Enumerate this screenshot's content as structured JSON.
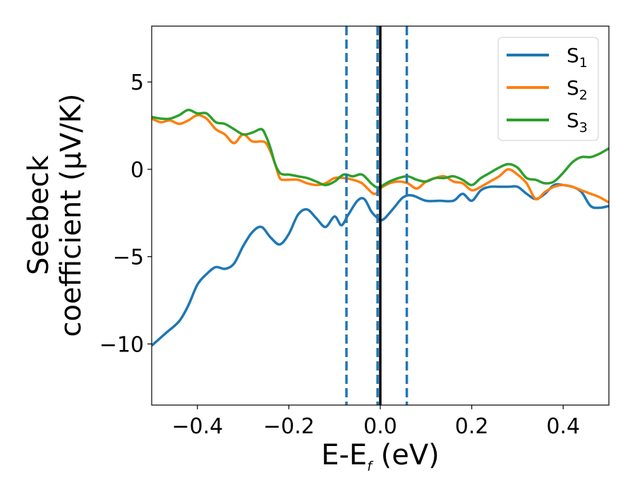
{
  "chart_data": {
    "type": "line",
    "title": "",
    "xlabel": {
      "main": "E-E",
      "sub": "f",
      "unit": " (eV)"
    },
    "ylabel": {
      "line1": "Seebeck",
      "line2": "coefficient  (μV/K)"
    },
    "xlim": [
      -0.5,
      0.5
    ],
    "ylim": [
      -13.5,
      8.2
    ],
    "xticks": [
      {
        "value": -0.4,
        "label": "−0.4"
      },
      {
        "value": -0.2,
        "label": "−0.2"
      },
      {
        "value": 0.0,
        "label": "0.0"
      },
      {
        "value": 0.2,
        "label": "0.2"
      },
      {
        "value": 0.4,
        "label": "0.4"
      }
    ],
    "yticks": [
      {
        "value": 5,
        "label": "5"
      },
      {
        "value": 0,
        "label": "0"
      },
      {
        "value": -5,
        "label": "−5"
      },
      {
        "value": -10,
        "label": "−10"
      }
    ],
    "grid": false,
    "legend_position": "top-right",
    "vlines": [
      {
        "x": -0.074,
        "style": "dashed",
        "color": "#1f77b4"
      },
      {
        "x": -0.006,
        "style": "dashed",
        "color": "#1f77b4"
      },
      {
        "x": 0.058,
        "style": "dashed",
        "color": "#1f77b4"
      },
      {
        "x": 0.0,
        "style": "solid",
        "color": "#000000"
      }
    ],
    "series": [
      {
        "name": "S",
        "sub": "1",
        "color": "#1f77b4",
        "x": [
          -0.5,
          -0.47,
          -0.44,
          -0.42,
          -0.4,
          -0.38,
          -0.36,
          -0.34,
          -0.32,
          -0.3,
          -0.28,
          -0.26,
          -0.24,
          -0.22,
          -0.2,
          -0.18,
          -0.16,
          -0.14,
          -0.12,
          -0.1,
          -0.085,
          -0.07,
          -0.05,
          -0.035,
          -0.02,
          -0.01,
          0.0,
          0.01,
          0.03,
          0.05,
          0.07,
          0.1,
          0.13,
          0.16,
          0.18,
          0.2,
          0.22,
          0.24,
          0.26,
          0.28,
          0.3,
          0.32,
          0.34,
          0.36,
          0.38,
          0.4,
          0.42,
          0.44,
          0.46,
          0.48,
          0.5
        ],
        "y": [
          -10.1,
          -9.4,
          -8.7,
          -7.8,
          -6.6,
          -6.0,
          -5.6,
          -5.7,
          -5.4,
          -4.4,
          -3.6,
          -3.3,
          -3.9,
          -4.3,
          -3.7,
          -2.6,
          -2.3,
          -2.8,
          -3.3,
          -2.7,
          -3.2,
          -2.6,
          -1.8,
          -1.7,
          -2.4,
          -2.7,
          -2.9,
          -2.8,
          -2.2,
          -1.6,
          -1.5,
          -1.8,
          -1.8,
          -1.8,
          -1.4,
          -1.8,
          -1.2,
          -1.0,
          -1.0,
          -1.0,
          -1.0,
          -1.4,
          -1.7,
          -1.4,
          -0.9,
          -0.9,
          -1.0,
          -1.3,
          -2.1,
          -2.2,
          -2.1
        ]
      },
      {
        "name": "S",
        "sub": "2",
        "color": "#ff7f0e",
        "x": [
          -0.5,
          -0.48,
          -0.46,
          -0.44,
          -0.42,
          -0.4,
          -0.38,
          -0.36,
          -0.34,
          -0.32,
          -0.3,
          -0.28,
          -0.26,
          -0.25,
          -0.24,
          -0.23,
          -0.22,
          -0.21,
          -0.2,
          -0.18,
          -0.16,
          -0.14,
          -0.12,
          -0.1,
          -0.08,
          -0.06,
          -0.04,
          -0.02,
          -0.01,
          0.0,
          0.02,
          0.04,
          0.06,
          0.08,
          0.1,
          0.12,
          0.14,
          0.16,
          0.18,
          0.2,
          0.22,
          0.24,
          0.26,
          0.28,
          0.3,
          0.32,
          0.34,
          0.36,
          0.38,
          0.4,
          0.42,
          0.44,
          0.46,
          0.48,
          0.5
        ],
        "y": [
          2.9,
          2.7,
          2.8,
          2.6,
          2.8,
          3.1,
          2.9,
          2.3,
          2.0,
          1.5,
          2.0,
          1.6,
          1.6,
          1.5,
          1.0,
          0.3,
          -0.5,
          -0.6,
          -0.6,
          -0.6,
          -0.8,
          -0.9,
          -0.8,
          -0.5,
          -0.5,
          -0.6,
          -0.8,
          -1.3,
          -1.4,
          -1.1,
          -0.8,
          -0.7,
          -0.8,
          -1.1,
          -0.7,
          -0.5,
          -0.4,
          -0.7,
          -0.8,
          -1.2,
          -1.0,
          -0.7,
          -0.4,
          0.0,
          -0.3,
          -0.8,
          -1.7,
          -1.3,
          -1.0,
          -0.9,
          -1.0,
          -1.2,
          -1.4,
          -1.6,
          -1.9
        ]
      },
      {
        "name": "S",
        "sub": "3",
        "color": "#2ca02c",
        "x": [
          -0.5,
          -0.48,
          -0.46,
          -0.44,
          -0.42,
          -0.4,
          -0.38,
          -0.36,
          -0.34,
          -0.32,
          -0.3,
          -0.28,
          -0.26,
          -0.25,
          -0.24,
          -0.23,
          -0.22,
          -0.21,
          -0.2,
          -0.18,
          -0.16,
          -0.14,
          -0.12,
          -0.1,
          -0.08,
          -0.06,
          -0.04,
          -0.02,
          -0.01,
          0.0,
          0.02,
          0.04,
          0.06,
          0.08,
          0.1,
          0.12,
          0.14,
          0.16,
          0.18,
          0.2,
          0.22,
          0.24,
          0.26,
          0.28,
          0.3,
          0.32,
          0.34,
          0.36,
          0.38,
          0.4,
          0.42,
          0.44,
          0.46,
          0.48,
          0.5
        ],
        "y": [
          3.0,
          2.9,
          2.9,
          3.1,
          3.4,
          3.2,
          3.2,
          2.7,
          2.6,
          2.3,
          2.0,
          2.1,
          2.3,
          1.9,
          1.2,
          0.3,
          -0.2,
          -0.3,
          -0.3,
          -0.4,
          -0.5,
          -0.7,
          -0.9,
          -0.7,
          -0.3,
          -0.4,
          -0.3,
          -0.8,
          -1.0,
          -1.0,
          -0.7,
          -0.5,
          -0.4,
          -0.6,
          -0.7,
          -0.5,
          -0.5,
          -0.4,
          -0.6,
          -0.9,
          -0.5,
          -0.2,
          0.1,
          0.3,
          0.1,
          -0.5,
          -0.6,
          -0.8,
          -0.7,
          -0.2,
          0.4,
          0.7,
          0.7,
          0.9,
          1.2
        ]
      }
    ]
  }
}
